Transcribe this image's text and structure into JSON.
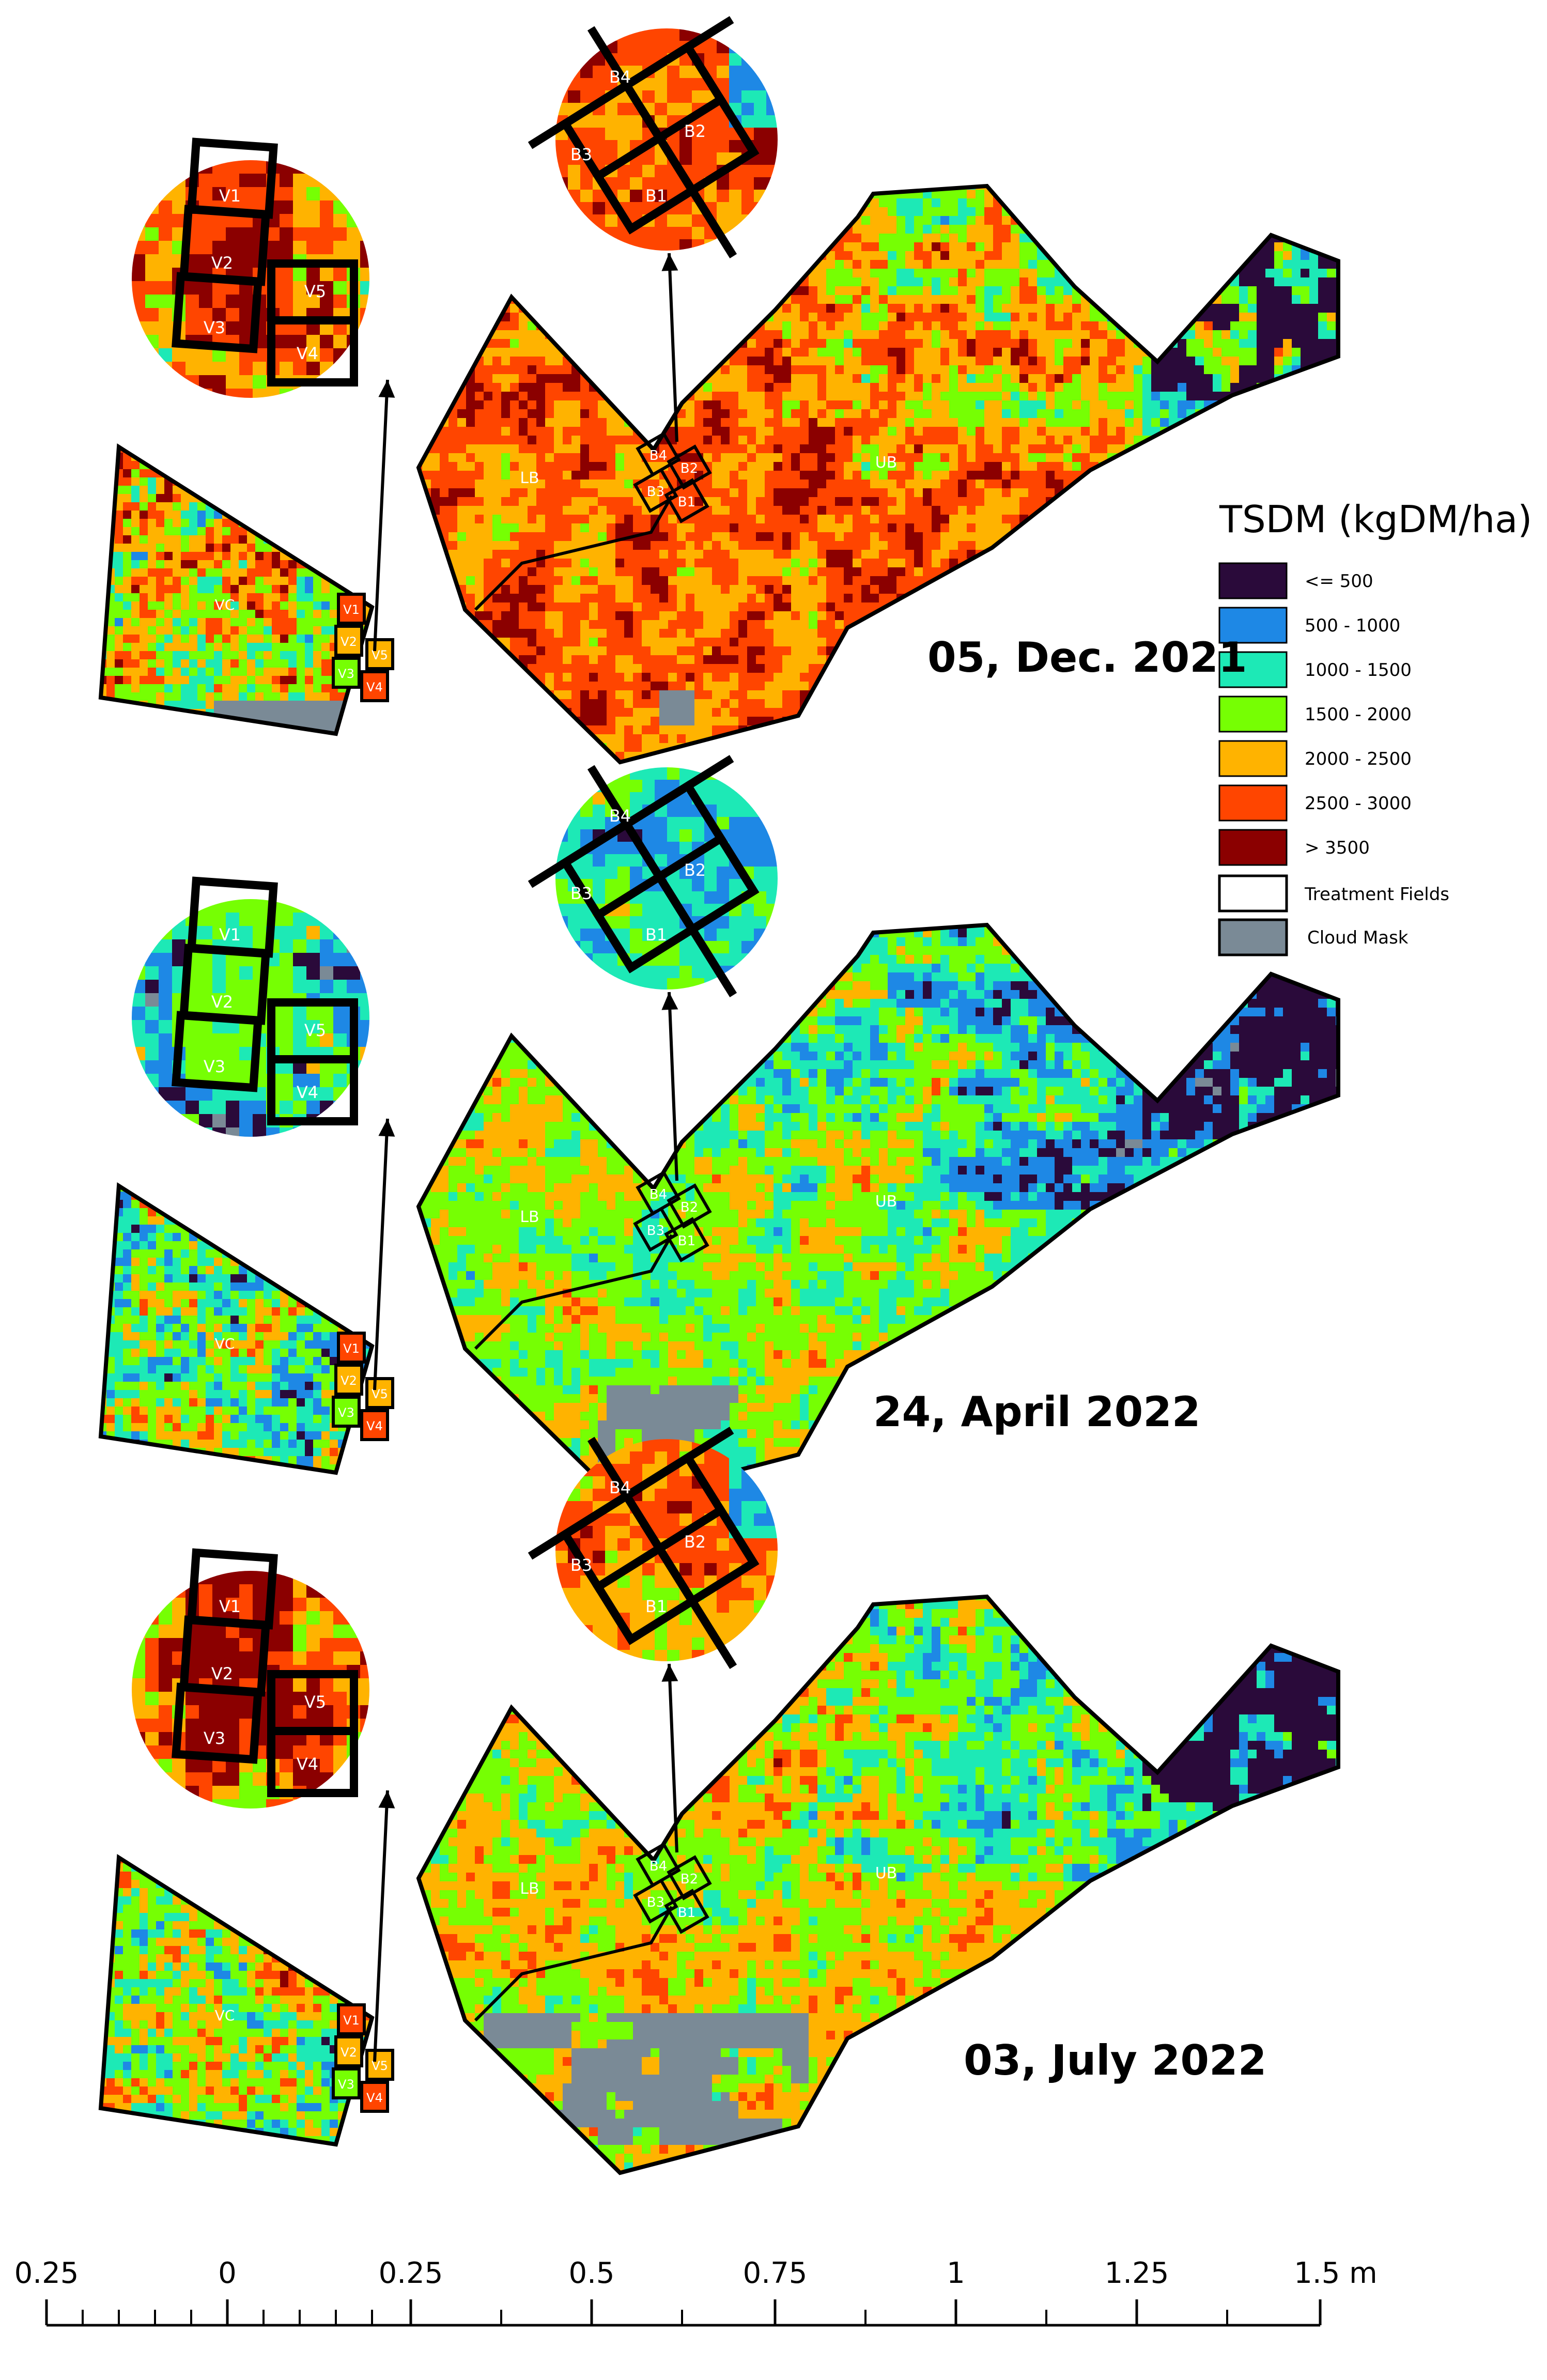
{
  "legend": {
    "title": "TSDM (kgDM/ha)",
    "classes": [
      {
        "label": "<= 500",
        "color": "#2a0a3a"
      },
      {
        "label": "500 - 1000",
        "color": "#1e88e5"
      },
      {
        "label": "1000 - 1500",
        "color": "#1de9b6"
      },
      {
        "label": "1500 - 2000",
        "color": "#76ff03"
      },
      {
        "label": "2000 - 2500",
        "color": "#ffb300"
      },
      {
        "label": "2500 - 3000",
        "color": "#ff4500"
      },
      {
        "label": "> 3500",
        "color": "#8b0000"
      }
    ],
    "treatment_label": "Treatment Fields",
    "cloud_label": "Cloud Mask",
    "cloud_color": "#7a8a96"
  },
  "panels": [
    {
      "date": "05, Dec. 2021"
    },
    {
      "date": "24, April 2022"
    },
    {
      "date": "03, July 2022"
    }
  ],
  "field_labels": {
    "lb": "LB",
    "ub": "UB",
    "vc": "VC",
    "b": [
      "B1",
      "B2",
      "B3",
      "B4"
    ],
    "v": [
      "V1",
      "V2",
      "V3",
      "V4",
      "V5"
    ]
  },
  "scale_bar": {
    "labels": [
      "0.25",
      "0",
      "0.25",
      "0.5",
      "0.75",
      "1",
      "1.25",
      "1.5 m"
    ]
  }
}
